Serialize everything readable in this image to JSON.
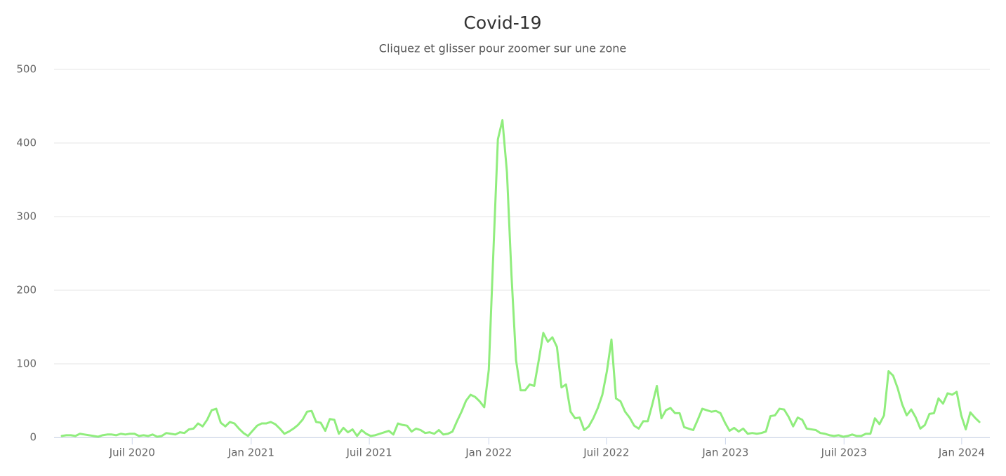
{
  "chart_data": {
    "type": "line",
    "title": "Covid-19",
    "subtitle": "Cliquez et glisser pour zoomer sur une zone",
    "series": [
      {
        "name": "Covid-19",
        "color": "#90ed7d",
        "values": [
          2,
          3,
          3,
          2,
          5,
          4,
          3,
          2,
          1,
          3,
          4,
          4,
          3,
          5,
          4,
          5,
          5,
          2,
          3,
          2,
          4,
          1,
          2,
          6,
          5,
          4,
          7,
          6,
          11,
          12,
          19,
          15,
          24,
          37,
          39,
          20,
          15,
          21,
          19,
          12,
          6,
          2,
          9,
          16,
          19,
          19,
          21,
          18,
          12,
          5,
          8,
          12,
          17,
          24,
          35,
          36,
          21,
          20,
          9,
          25,
          24,
          5,
          13,
          7,
          11,
          2,
          10,
          5,
          2,
          3,
          5,
          7,
          9,
          4,
          19,
          17,
          16,
          8,
          12,
          10,
          6,
          7,
          5,
          10,
          4,
          5,
          8,
          22,
          35,
          50,
          58,
          55,
          49,
          41,
          92,
          250,
          405,
          431,
          360,
          220,
          105,
          64,
          64,
          72,
          70,
          105,
          142,
          130,
          136,
          123,
          68,
          72,
          35,
          26,
          27,
          10,
          15,
          26,
          40,
          58,
          90,
          133,
          53,
          49,
          35,
          27,
          16,
          12,
          22,
          22,
          45,
          70,
          26,
          37,
          40,
          33,
          33,
          14,
          12,
          10,
          24,
          39,
          37,
          35,
          36,
          33,
          20,
          9,
          13,
          8,
          12,
          5,
          6,
          5,
          6,
          8,
          29,
          30,
          39,
          38,
          28,
          15,
          27,
          24,
          12,
          11,
          10,
          6,
          5,
          3,
          2,
          3,
          1,
          2,
          4,
          2,
          2,
          5,
          5,
          26,
          18,
          30,
          90,
          84,
          67,
          45,
          30,
          38,
          27,
          12,
          17,
          32,
          33,
          53,
          46,
          60,
          58,
          62,
          30,
          11,
          34,
          27,
          21
        ]
      }
    ],
    "xlim": [
      -1.7,
      204.3
    ],
    "xticks": [
      {
        "value": 15.5,
        "label": "Juil 2020"
      },
      {
        "value": 41.7,
        "label": "Jan 2021"
      },
      {
        "value": 67.7,
        "label": "Juil 2021"
      },
      {
        "value": 94.0,
        "label": "Jan 2022"
      },
      {
        "value": 119.9,
        "label": "Juil 2022"
      },
      {
        "value": 146.1,
        "label": "Jan 2023"
      },
      {
        "value": 172.2,
        "label": "Juil 2023"
      },
      {
        "value": 198.1,
        "label": "Jan 2024"
      }
    ],
    "ylim": [
      0,
      500
    ],
    "yticks": [
      0,
      100,
      200,
      300,
      400,
      500
    ],
    "grid": true
  }
}
